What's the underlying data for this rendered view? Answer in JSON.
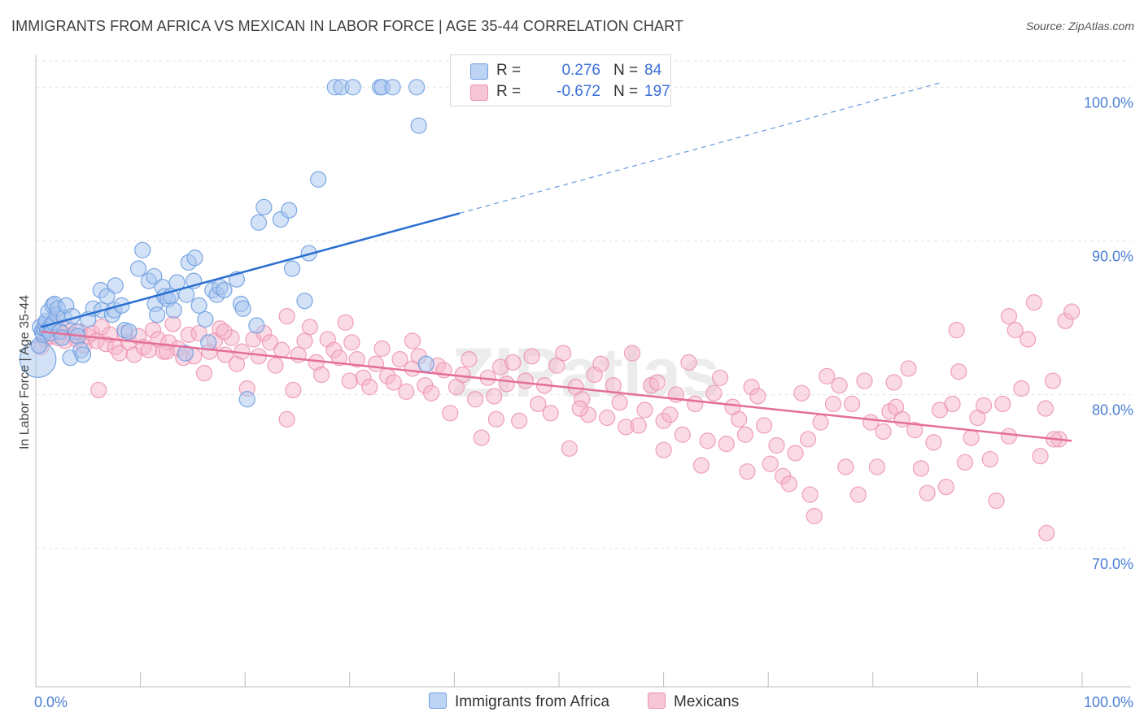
{
  "title": "IMMIGRANTS FROM AFRICA VS MEXICAN IN LABOR FORCE | AGE 35-44 CORRELATION CHART",
  "source": "Source: ZipAtlas.com",
  "watermark": "ZIPatlas",
  "colors": {
    "africa_fill": "#a9c6f0",
    "africa_stroke": "#6e9ee0",
    "africa_line": "#2a6fd1",
    "mexican_fill": "#f5b5c9",
    "mexican_stroke": "#ec90ae",
    "mexican_line": "#e46f98",
    "tick_text": "#4a7fd4",
    "grid": "#e3e3e3"
  },
  "legend": {
    "rows": [
      {
        "r_label": "R =",
        "r_value": "0.276",
        "n_label": "N =",
        "n_value": "84"
      },
      {
        "r_label": "R =",
        "r_value": "-0.672",
        "n_label": "N =",
        "n_value": "197"
      }
    ]
  },
  "chart_data": {
    "type": "scatter",
    "title": "IMMIGRANTS FROM AFRICA VS MEXICAN IN LABOR FORCE | AGE 35-44 CORRELATION CHART",
    "xlabel": "",
    "ylabel": "In Labor Force | Age 35-44",
    "xlim": [
      0,
      100
    ],
    "ylim": [
      61,
      102.5
    ],
    "x_tick_labels": [
      "0.0%",
      "100.0%"
    ],
    "y_ticks": [
      70,
      80,
      90,
      100
    ],
    "y_tick_labels": [
      "70.0%",
      "80.0%",
      "90.0%",
      "100.0%"
    ],
    "grid": true,
    "legend_position": "top-center",
    "series": [
      {
        "name": "Immigrants from Africa",
        "x": [
          0.2,
          0.3,
          0.4,
          0.6,
          0.7,
          0.8,
          0.9,
          1,
          1.1,
          1.2,
          1.4,
          1.5,
          1.6,
          1.7,
          1.8,
          2.0,
          2.1,
          2.3,
          2.5,
          2.7,
          2.9,
          3.3,
          3.5,
          3.9,
          4.0,
          4.3,
          4.5,
          5.0,
          5.5,
          6.2,
          6.3,
          6.8,
          7.3,
          7.5,
          7.6,
          8.2,
          8.5,
          8.9,
          9.8,
          10.2,
          10.8,
          11.3,
          11.4,
          11.6,
          12.1,
          12.3,
          12.6,
          12.9,
          13.2,
          13.5,
          14.3,
          14.4,
          14.6,
          15.1,
          15.2,
          15.6,
          16.2,
          16.5,
          16.9,
          17.3,
          17.6,
          18.0,
          19.2,
          19.6,
          19.8,
          20.2,
          21.1,
          21.3,
          21.8,
          23.4,
          24.2,
          24.5,
          25.7,
          26.1,
          27.0,
          28.6,
          29.2,
          30.3,
          32.9,
          33.1,
          34.1,
          36.4,
          36.6,
          37.3
        ],
        "y": [
          82.3,
          83.2,
          84.4,
          84.1,
          83.9,
          84.3,
          84.6,
          84.8,
          84.2,
          85.4,
          84.0,
          84.5,
          85.8,
          84.7,
          85.9,
          85.2,
          85.6,
          84.1,
          83.7,
          85.0,
          85.8,
          82.4,
          85.1,
          84.1,
          83.8,
          82.9,
          82.6,
          84.9,
          85.6,
          86.8,
          85.5,
          86.4,
          85.2,
          85.5,
          87.1,
          85.8,
          84.2,
          84.1,
          88.2,
          89.4,
          87.4,
          87.7,
          85.9,
          85.2,
          87.0,
          86.4,
          86.2,
          86.4,
          85.5,
          87.3,
          82.7,
          86.5,
          88.6,
          87.4,
          88.9,
          85.8,
          84.9,
          83.4,
          86.8,
          86.5,
          87.0,
          86.8,
          87.5,
          85.9,
          85.6,
          79.7,
          84.5,
          91.2,
          92.2,
          91.4,
          92.0,
          88.2,
          86.1,
          89.2,
          94.0,
          100.0,
          100.0,
          100.0,
          100.0,
          100.0,
          100.0,
          100.0,
          97.5,
          82.0
        ],
        "sizes": [
          28,
          12,
          12,
          12,
          12,
          12,
          12,
          12,
          12,
          12,
          12,
          12,
          12,
          12,
          12,
          12,
          12,
          12,
          12,
          12,
          12,
          12,
          12,
          12,
          12,
          12,
          12,
          12,
          12,
          12,
          12,
          12,
          12,
          12,
          12,
          12,
          12,
          12,
          12,
          12,
          12,
          12,
          12,
          12,
          12,
          12,
          12,
          12,
          12,
          12,
          12,
          12,
          12,
          12,
          12,
          12,
          12,
          12,
          12,
          12,
          12,
          12,
          12,
          12,
          12,
          12,
          12,
          12,
          12,
          12,
          12,
          12,
          12,
          12,
          12,
          12,
          12,
          12,
          12,
          12,
          12,
          12,
          12,
          12
        ]
      },
      {
        "name": "Mexicans",
        "x": [
          0.5,
          0.7,
          0.9,
          1.2,
          1.5,
          1.8,
          2.1,
          2.4,
          2.8,
          3.1,
          3.5,
          3.9,
          4.2,
          4.6,
          5.0,
          5.4,
          5.8,
          6.3,
          6.7,
          7.1,
          7.6,
          8.0,
          8.5,
          8.9,
          9.4,
          9.8,
          10.3,
          10.8,
          11.2,
          11.7,
          12.2,
          12.7,
          13.1,
          13.6,
          14.1,
          14.6,
          15.1,
          15.6,
          16.1,
          16.6,
          17.1,
          17.6,
          18.1,
          18.7,
          19.2,
          19.7,
          20.2,
          20.8,
          21.3,
          21.8,
          22.4,
          22.9,
          23.5,
          24.0,
          24.6,
          25.1,
          25.7,
          26.2,
          26.8,
          27.3,
          27.9,
          28.5,
          29.0,
          29.6,
          30.2,
          30.7,
          31.3,
          31.9,
          32.5,
          33.1,
          33.6,
          34.2,
          34.8,
          35.4,
          36.0,
          36.6,
          37.2,
          37.8,
          38.4,
          39.0,
          39.6,
          40.2,
          40.8,
          41.4,
          42.0,
          42.6,
          43.2,
          43.8,
          44.4,
          45.0,
          45.6,
          46.2,
          46.8,
          47.4,
          48.0,
          48.6,
          49.2,
          49.8,
          50.4,
          51.0,
          51.6,
          52.2,
          52.8,
          53.4,
          54.0,
          54.6,
          55.2,
          55.8,
          56.4,
          57.0,
          57.6,
          58.2,
          58.8,
          59.4,
          60.0,
          60.6,
          61.2,
          61.8,
          62.4,
          63.0,
          63.6,
          64.2,
          64.8,
          65.4,
          66.0,
          66.6,
          67.2,
          67.8,
          68.4,
          69.0,
          69.6,
          70.2,
          70.8,
          71.4,
          72.0,
          72.6,
          73.2,
          73.8,
          74.4,
          75.0,
          75.6,
          76.2,
          76.8,
          77.4,
          78.0,
          78.6,
          79.2,
          79.8,
          80.4,
          81.0,
          81.6,
          82.2,
          82.8,
          83.4,
          84.0,
          84.6,
          85.2,
          85.8,
          86.4,
          87.0,
          87.6,
          88.2,
          88.8,
          89.4,
          90.0,
          90.6,
          91.2,
          91.8,
          92.4,
          93.0,
          93.6,
          94.2,
          94.8,
          95.4,
          96.0,
          96.6,
          97.2,
          97.8,
          98.4,
          99.0,
          6.0,
          12.5,
          18.0,
          24.0,
          30.0,
          36.0,
          44.0,
          52.0,
          60.0,
          68.0,
          74.0,
          82.0,
          88.0,
          93.0,
          96.5,
          97.3
        ],
        "y": [
          83.1,
          84.0,
          83.6,
          84.2,
          83.8,
          84.5,
          83.7,
          84.1,
          83.5,
          84.3,
          83.9,
          83.6,
          84.1,
          83.2,
          83.8,
          84.0,
          83.5,
          84.4,
          83.3,
          83.9,
          83.1,
          82.7,
          84.0,
          83.4,
          82.6,
          83.8,
          83.1,
          82.9,
          84.2,
          83.6,
          82.8,
          83.4,
          84.6,
          83.0,
          82.4,
          83.9,
          82.5,
          84.0,
          81.4,
          82.8,
          83.5,
          84.3,
          82.6,
          83.7,
          82.0,
          82.8,
          80.4,
          83.6,
          82.5,
          84.0,
          83.4,
          81.9,
          82.9,
          85.1,
          80.3,
          82.6,
          83.5,
          84.4,
          82.1,
          81.3,
          83.6,
          82.9,
          82.4,
          84.7,
          83.4,
          82.3,
          81.1,
          80.5,
          82.0,
          83.0,
          81.2,
          80.8,
          82.3,
          80.2,
          81.7,
          82.5,
          80.6,
          80.1,
          81.9,
          81.6,
          78.8,
          80.5,
          81.3,
          82.3,
          79.7,
          77.2,
          81.1,
          79.9,
          81.8,
          80.7,
          82.1,
          78.3,
          80.9,
          82.5,
          79.4,
          80.6,
          78.8,
          81.9,
          82.7,
          76.5,
          80.5,
          79.7,
          78.7,
          81.3,
          82.0,
          78.5,
          80.6,
          79.5,
          77.9,
          82.7,
          78.0,
          79.0,
          80.6,
          80.8,
          78.3,
          78.7,
          80.0,
          77.4,
          82.1,
          79.4,
          75.4,
          77.0,
          80.1,
          81.1,
          76.8,
          79.2,
          78.4,
          77.4,
          80.5,
          79.9,
          78.0,
          75.5,
          76.7,
          74.7,
          74.2,
          76.2,
          80.1,
          77.1,
          72.1,
          78.2,
          81.2,
          79.4,
          80.6,
          75.3,
          79.4,
          73.5,
          80.9,
          78.2,
          75.3,
          77.6,
          78.9,
          79.2,
          78.4,
          81.7,
          77.7,
          75.2,
          73.6,
          76.9,
          79.0,
          74.0,
          79.4,
          81.5,
          75.6,
          77.2,
          78.5,
          79.3,
          75.8,
          73.1,
          79.4,
          85.1,
          84.2,
          80.4,
          83.6,
          86.0,
          76.0,
          71.0,
          80.9,
          77.1,
          84.8,
          85.4,
          80.3,
          82.8,
          84.1,
          78.4,
          80.9,
          83.5,
          78.4,
          79.1,
          76.4,
          75.0,
          73.5,
          80.8,
          84.2,
          77.3,
          79.1,
          77.1
        ],
        "sizes": [
          12
        ]
      }
    ],
    "trend_lines": [
      {
        "series": "Immigrants from Africa",
        "x_start": 0.5,
        "y_start": 84.4,
        "x_end": 40.5,
        "y_end": 91.8,
        "dashed_to_x": 86.5,
        "dashed_to_y": 100.3
      },
      {
        "series": "Mexicans",
        "x_start": 0.5,
        "y_start": 84.1,
        "x_end": 99.0,
        "y_end": 77.0
      }
    ]
  }
}
